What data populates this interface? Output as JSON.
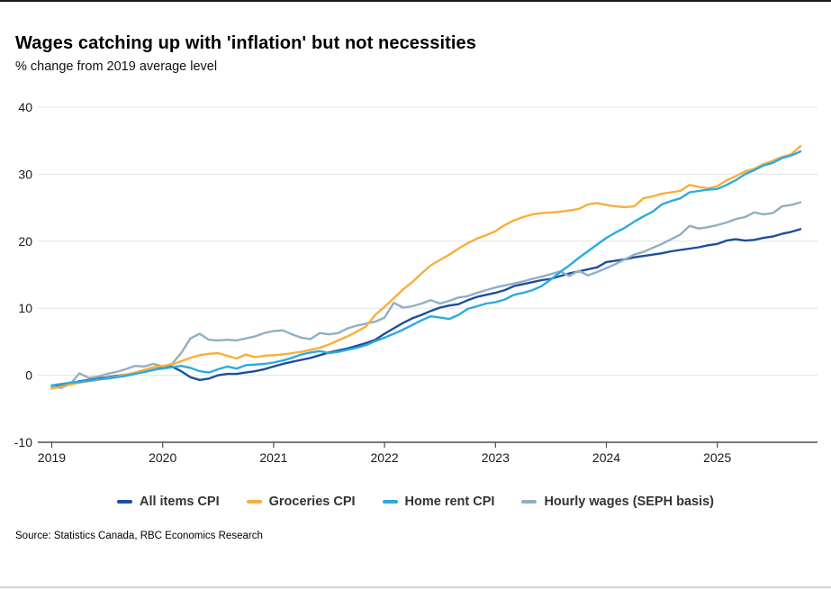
{
  "header": {
    "title": "Wages catching up with 'inflation' but not necessities",
    "subtitle": "% change from 2019 average level"
  },
  "chart_data": {
    "type": "line",
    "title": "Wages catching up with 'inflation' but not necessities",
    "subtitle": "% change from 2019 average level",
    "xlabel": "",
    "ylabel": "",
    "x_start": "2019-01",
    "x_frequency": "monthly",
    "x_tick_labels": [
      "2019",
      "2020",
      "2021",
      "2022",
      "2023",
      "2024",
      "2025"
    ],
    "y_ticks": [
      40,
      30,
      20,
      10,
      0,
      -10
    ],
    "ylim": [
      -10,
      40
    ],
    "grid": "horizontal-light",
    "legend_position": "bottom",
    "series": [
      {
        "name": "All items CPI",
        "color": "#1c4e9c",
        "values": [
          -1.8,
          -1.5,
          -1.2,
          -0.9,
          -0.7,
          -0.5,
          -0.3,
          -0.1,
          0.1,
          0.3,
          0.5,
          0.8,
          1.1,
          1.3,
          0.6,
          -0.3,
          -0.7,
          -0.5,
          0.0,
          0.2,
          0.2,
          0.4,
          0.6,
          0.9,
          1.3,
          1.7,
          2.0,
          2.3,
          2.6,
          3.0,
          3.4,
          3.7,
          4.0,
          4.4,
          4.8,
          5.3,
          6.2,
          7.0,
          7.8,
          8.5,
          9.0,
          9.6,
          10.1,
          10.4,
          10.6,
          11.2,
          11.7,
          12.0,
          12.3,
          12.7,
          13.3,
          13.6,
          13.9,
          14.2,
          14.4,
          14.8,
          15.2,
          15.5,
          15.8,
          16.1,
          16.9,
          17.1,
          17.3,
          17.6,
          17.8,
          18.0,
          18.2,
          18.5,
          18.7,
          18.9,
          19.1,
          19.4,
          19.6,
          20.1,
          20.3,
          20.1,
          20.2,
          20.5,
          20.7,
          21.1,
          21.4,
          21.8
        ]
      },
      {
        "name": "Groceries CPI",
        "color": "#f9ae3b",
        "values": [
          -2.0,
          -1.7,
          -1.4,
          -1.1,
          -0.9,
          -0.7,
          -0.4,
          -0.2,
          0.1,
          0.4,
          0.8,
          1.2,
          1.4,
          1.6,
          2.1,
          2.6,
          3.0,
          3.2,
          3.3,
          2.9,
          2.5,
          3.1,
          2.7,
          2.9,
          3.0,
          3.1,
          3.3,
          3.5,
          3.8,
          4.1,
          4.6,
          5.2,
          5.8,
          6.5,
          7.3,
          9.0,
          10.2,
          11.5,
          12.8,
          13.9,
          15.2,
          16.4,
          17.2,
          18.0,
          18.9,
          19.7,
          20.4,
          20.9,
          21.5,
          22.4,
          23.1,
          23.6,
          24.0,
          24.2,
          24.3,
          24.4,
          24.6,
          24.8,
          25.5,
          25.7,
          25.4,
          25.2,
          25.1,
          25.2,
          26.4,
          26.7,
          27.1,
          27.3,
          27.5,
          28.4,
          28.1,
          27.9,
          28.2,
          29.1,
          29.7,
          30.4,
          30.8,
          31.5,
          32.0,
          32.6,
          33.0,
          34.2
        ]
      },
      {
        "name": "Home rent CPI",
        "color": "#2aabe2",
        "values": [
          -1.5,
          -1.3,
          -1.1,
          -1.0,
          -0.8,
          -0.6,
          -0.5,
          -0.3,
          -0.1,
          0.2,
          0.5,
          0.8,
          1.0,
          1.2,
          1.4,
          1.1,
          0.6,
          0.4,
          0.9,
          1.3,
          1.0,
          1.5,
          1.6,
          1.7,
          1.9,
          2.2,
          2.6,
          3.1,
          3.4,
          3.6,
          3.3,
          3.5,
          3.8,
          4.1,
          4.5,
          5.1,
          5.6,
          6.2,
          6.8,
          7.5,
          8.2,
          8.8,
          8.6,
          8.4,
          9.0,
          9.9,
          10.3,
          10.7,
          10.9,
          11.3,
          12.0,
          12.3,
          12.7,
          13.3,
          14.3,
          15.4,
          16.4,
          17.5,
          18.5,
          19.5,
          20.5,
          21.3,
          22.0,
          22.9,
          23.7,
          24.4,
          25.5,
          26.0,
          26.4,
          27.3,
          27.5,
          27.7,
          27.8,
          28.4,
          29.1,
          30.0,
          30.6,
          31.3,
          31.7,
          32.4,
          32.8,
          33.4
        ]
      },
      {
        "name": "Hourly wages (SEPH basis)",
        "color": "#90afc2",
        "values": [
          -1.7,
          -1.9,
          -1.3,
          0.3,
          -0.4,
          -0.2,
          0.2,
          0.5,
          0.9,
          1.4,
          1.3,
          1.7,
          1.3,
          1.7,
          3.3,
          5.5,
          6.2,
          5.3,
          5.2,
          5.3,
          5.2,
          5.5,
          5.8,
          6.3,
          6.6,
          6.7,
          6.1,
          5.6,
          5.4,
          6.3,
          6.1,
          6.3,
          7.0,
          7.4,
          7.7,
          8.0,
          8.6,
          10.8,
          10.1,
          10.3,
          10.7,
          11.2,
          10.7,
          11.1,
          11.6,
          11.8,
          12.3,
          12.7,
          13.1,
          13.4,
          13.7,
          14.0,
          14.4,
          14.7,
          15.1,
          15.5,
          14.8,
          15.6,
          14.9,
          15.4,
          16.0,
          16.6,
          17.3,
          18.0,
          18.4,
          19.0,
          19.6,
          20.3,
          21.0,
          22.3,
          21.9,
          22.1,
          22.4,
          22.8,
          23.3,
          23.6,
          24.3,
          24.0,
          24.2,
          25.2,
          25.4,
          25.8
        ]
      }
    ]
  },
  "footer": {
    "source": "Source: Statistics Canada, RBC Economics Research"
  },
  "style": {
    "grid_color": "#e3e3e3",
    "axis_color": "#4d4d4d",
    "top_rule_color": "#1a1a1a",
    "bottom_rule_color": "#d2d2d2"
  }
}
